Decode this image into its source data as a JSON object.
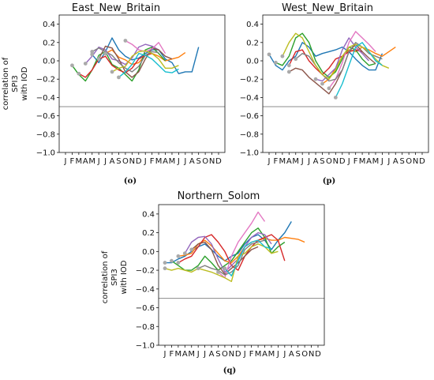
{
  "colors": {
    "series": [
      "#1f77b4",
      "#ff7f0e",
      "#2ca02c",
      "#d62728",
      "#9467bd",
      "#8c564b",
      "#e377c2",
      "#7f7f7f",
      "#bcbd22",
      "#17becf"
    ],
    "start_marker": "#aaaaaa",
    "threshold_line": "#8c8c8c"
  },
  "chart_data": [
    {
      "type": "line",
      "title": "East_New_Britain",
      "caption": "(o)",
      "ylabel": [
        "correlation of",
        "SPI3",
        "with IOD"
      ],
      "ylim": [
        -1.0,
        0.5
      ],
      "yticks": [
        0.4,
        0.2,
        0.0,
        -0.2,
        -0.4,
        -0.6,
        -0.8,
        -1.0
      ],
      "ytick_labels": [
        "0.4",
        "0.2",
        "0.0",
        "−0.2",
        "−0.4",
        "−0.6",
        "−0.8",
        "−1.0"
      ],
      "x_categories": [
        "J",
        "F",
        "M",
        "A",
        "M",
        "J",
        "J",
        "A",
        "S",
        "O",
        "N",
        "D",
        "J",
        "F",
        "M",
        "A",
        "M",
        "J",
        "J",
        "A",
        "S",
        "O",
        "N",
        "D"
      ],
      "threshold": -0.5,
      "series": [
        {
          "start": 4,
          "values": [
            0.07,
            -0.02,
            0.1,
            0.25,
            0.12,
            0.05,
            0.01,
            0.03,
            0.08,
            0.12,
            0.12,
            0.02,
            -0.02,
            -0.14,
            -0.12,
            -0.12,
            0.15
          ]
        },
        {
          "start": 6,
          "values": [
            0.08,
            0.12,
            0.04,
            0.01,
            -0.04,
            -0.02,
            0.06,
            0.08,
            0.05,
            0.0,
            0.02,
            0.04,
            0.09
          ]
        },
        {
          "start": 1,
          "values": [
            -0.05,
            -0.15,
            -0.22,
            -0.1,
            0.06,
            0.1,
            -0.04,
            -0.08,
            -0.15,
            -0.22,
            -0.1,
            0.12,
            0.15,
            0.08,
            0.0
          ]
        },
        {
          "start": 2,
          "values": [
            -0.14,
            -0.18,
            -0.1,
            0.02,
            0.05,
            -0.05,
            -0.1,
            -0.13,
            -0.08,
            0.02,
            0.06,
            0.08
          ]
        },
        {
          "start": 3,
          "values": [
            -0.03,
            0.05,
            0.15,
            0.12,
            0.02,
            0.0,
            -0.04,
            0.03,
            0.15,
            0.18,
            0.16,
            0.12
          ]
        },
        {
          "start": 5,
          "values": [
            0.02,
            0.16,
            0.14,
            0.02,
            -0.12,
            -0.18,
            -0.12,
            0.02,
            0.14,
            0.12,
            0.05,
            0.02
          ]
        },
        {
          "start": 9,
          "values": [
            0.22,
            0.18,
            0.12,
            0.1,
            0.13,
            0.2,
            0.08
          ]
        },
        {
          "start": 4,
          "values": [
            0.1,
            0.14,
            0.1,
            0.06,
            -0.02,
            -0.08,
            -0.12,
            -0.06,
            0.06,
            0.1,
            0.09
          ]
        },
        {
          "start": 7,
          "values": [
            -0.12,
            -0.08,
            -0.06,
            0.05,
            0.1,
            0.11,
            0.08,
            0.02,
            -0.08,
            -0.08,
            -0.05
          ]
        },
        {
          "start": 8,
          "values": [
            -0.18,
            -0.12,
            -0.04,
            0.08,
            0.06,
            0.02,
            -0.05,
            -0.12,
            -0.13,
            -0.09
          ]
        }
      ]
    },
    {
      "type": "line",
      "title": "West_New_Britain",
      "caption": "(p)",
      "ylabel": [
        "correlation of",
        "SPI3",
        "with IOD"
      ],
      "ylim": [
        -1.0,
        0.5
      ],
      "yticks": [
        0.4,
        0.2,
        0.0,
        -0.2,
        -0.4,
        -0.6,
        -0.8,
        -1.0
      ],
      "ytick_labels": [
        "0.4",
        "0.2",
        "0.0",
        "−0.2",
        "−0.4",
        "−0.6",
        "−0.8",
        "−1.0"
      ],
      "x_categories": [
        "J",
        "F",
        "M",
        "A",
        "M",
        "J",
        "J",
        "A",
        "S",
        "O",
        "N",
        "D",
        "J",
        "F",
        "M",
        "A",
        "M",
        "J",
        "J",
        "A",
        "S",
        "O",
        "N",
        "D"
      ],
      "threshold": -0.5,
      "series": [
        {
          "start": 0,
          "values": [
            0.07,
            -0.05,
            -0.1,
            0.0,
            0.05,
            0.2,
            0.15,
            0.05,
            0.08,
            0.1,
            0.12,
            0.15,
            0.1,
            0.02,
            -0.05,
            -0.1,
            -0.1,
            0.08
          ]
        },
        {
          "start": 8,
          "values": [
            -0.25,
            -0.2,
            -0.08,
            0.05,
            0.12,
            0.1,
            0.15,
            0.12,
            0.08,
            0.05,
            0.1,
            0.15
          ]
        },
        {
          "start": 1,
          "values": [
            -0.02,
            -0.05,
            0.05,
            0.25,
            0.3,
            0.2,
            0.0,
            -0.12,
            -0.18,
            -0.12,
            0.02,
            0.15,
            0.12,
            0.02,
            -0.05,
            -0.03
          ]
        },
        {
          "start": 3,
          "values": [
            -0.05,
            0.1,
            0.12,
            0.0,
            -0.08,
            -0.15,
            -0.08,
            0.02,
            0.05,
            0.1,
            0.12,
            0.1
          ]
        },
        {
          "start": 7,
          "values": [
            -0.2,
            -0.22,
            -0.15,
            -0.08,
            0.12,
            0.25,
            0.15,
            0.08,
            0.0
          ]
        },
        {
          "start": 3,
          "values": [
            -0.12,
            -0.08,
            -0.1,
            -0.18,
            -0.24,
            -0.3,
            -0.36,
            -0.25,
            -0.1,
            0.1,
            0.18,
            0.1,
            0.03,
            -0.03
          ]
        },
        {
          "start": 9,
          "values": [
            -0.3,
            -0.2,
            -0.02,
            0.2,
            0.32,
            0.25,
            0.18,
            0.1
          ]
        },
        {
          "start": 4,
          "values": [
            0.02,
            0.08,
            0.05,
            -0.05,
            -0.15,
            -0.22,
            -0.2,
            -0.1,
            0.1,
            0.2,
            0.15,
            0.08,
            0.05,
            0.02
          ]
        },
        {
          "start": 2,
          "values": [
            0.05,
            0.2,
            0.3,
            0.25,
            0.1,
            -0.05,
            -0.15,
            -0.2,
            -0.1,
            0.05,
            0.15,
            0.18,
            0.15,
            0.1,
            0.02,
            -0.05,
            -0.08
          ]
        },
        {
          "start": 10,
          "values": [
            -0.4,
            -0.25,
            -0.05,
            0.15,
            0.2,
            0.1,
            0.0,
            -0.05
          ]
        }
      ]
    },
    {
      "type": "line",
      "title": "Northern_Solom",
      "caption": "(q)",
      "ylabel": [
        "correlation of",
        "SPI3",
        "with IOD"
      ],
      "ylim": [
        -1.0,
        0.5
      ],
      "yticks": [
        0.4,
        0.2,
        0.0,
        -0.2,
        -0.4,
        -0.6,
        -0.8,
        -1.0
      ],
      "ytick_labels": [
        "0.4",
        "0.2",
        "0.0",
        "−0.2",
        "−0.4",
        "−0.6",
        "−0.8",
        "−1.0"
      ],
      "x_categories": [
        "J",
        "F",
        "M",
        "A",
        "M",
        "J",
        "J",
        "A",
        "S",
        "O",
        "N",
        "D",
        "J",
        "F",
        "M",
        "A",
        "M",
        "J",
        "J",
        "A",
        "S",
        "O",
        "N",
        "D"
      ],
      "threshold": -0.5,
      "series": [
        {
          "start": 0,
          "values": [
            -0.12,
            -0.12,
            -0.08,
            -0.05,
            0.0,
            0.05,
            0.08,
            0.02,
            -0.05,
            -0.1,
            -0.05,
            -0.02,
            0.08,
            0.15,
            0.18,
            0.12,
            0.02,
            0.12,
            0.2,
            0.32
          ]
        },
        {
          "start": 2,
          "values": [
            -0.05,
            -0.04,
            -0.02,
            0.08,
            0.12,
            0.06,
            -0.02,
            -0.1,
            -0.12,
            -0.05,
            0.05,
            0.1,
            0.12,
            0.14,
            0.12,
            0.12,
            0.15,
            0.14,
            0.13,
            0.1
          ]
        },
        {
          "start": 1,
          "values": [
            -0.1,
            -0.15,
            -0.2,
            -0.2,
            -0.15,
            -0.05,
            -0.12,
            -0.2,
            -0.15,
            -0.1,
            0.0,
            0.1,
            0.2,
            0.25,
            0.15,
            -0.02,
            0.05,
            0.1
          ]
        },
        {
          "start": 2,
          "values": [
            -0.12,
            -0.08,
            -0.05,
            0.05,
            0.15,
            0.18,
            0.1,
            0.0,
            -0.15,
            -0.2,
            -0.05,
            0.05,
            0.12,
            0.15,
            0.18,
            0.12,
            -0.1
          ]
        },
        {
          "start": 3,
          "values": [
            -0.02,
            0.1,
            0.15,
            0.16,
            0.08,
            -0.08,
            -0.22,
            -0.15,
            -0.08,
            0.05,
            0.15,
            0.2,
            0.18,
            0.08
          ]
        },
        {
          "start": 4,
          "values": [
            0.02,
            0.08,
            0.1,
            0.02,
            -0.15,
            -0.24,
            -0.18,
            -0.12,
            -0.05,
            0.02,
            0.05
          ]
        },
        {
          "start": 8,
          "values": [
            -0.22,
            -0.28,
            -0.05,
            0.1,
            0.2,
            0.3,
            0.42,
            0.32
          ]
        },
        {
          "start": 5,
          "values": [
            -0.18,
            -0.15,
            -0.18,
            -0.2,
            -0.25,
            -0.22,
            -0.15,
            0.02,
            0.08,
            0.1,
            0.12
          ]
        },
        {
          "start": 0,
          "values": [
            -0.18,
            -0.2,
            -0.18,
            -0.2,
            -0.22,
            -0.18,
            -0.2,
            -0.22,
            -0.25,
            -0.28,
            -0.32,
            -0.05,
            -0.02,
            0.05,
            0.08,
            0.05,
            -0.02,
            0.0
          ]
        },
        {
          "start": 9,
          "values": [
            -0.18,
            -0.26,
            -0.1,
            0.05,
            0.1,
            0.12,
            0.05,
            0.03
          ]
        }
      ]
    }
  ]
}
